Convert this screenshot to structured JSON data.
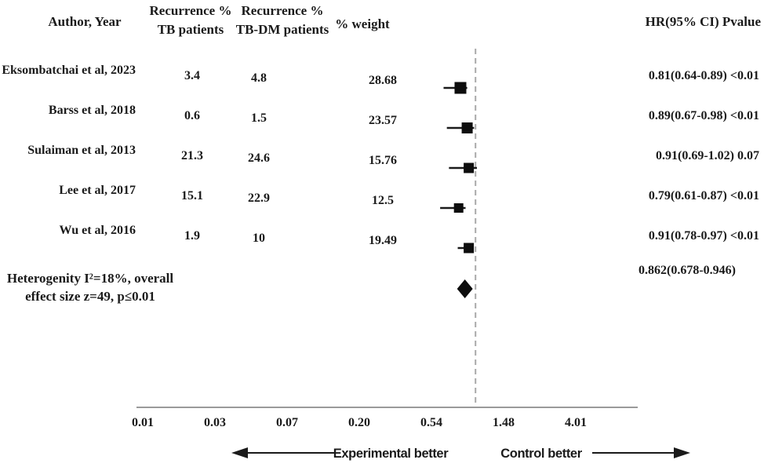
{
  "chart_data": {
    "type": "forest",
    "columns": {
      "author": "Author, Year",
      "tb_line1": "Recurrence %",
      "tb_line2": "TB patients",
      "tbdm_line1": "Recurrence %",
      "tbdm_line2": "TB-DM patients",
      "weight": "% weight",
      "hr": "HR(95% CI) Pvalue"
    },
    "studies": [
      {
        "author": "Eksombatchai et al, 2023",
        "recurrence_tb": "3.4",
        "recurrence_tbdm": "4.8",
        "weight": "28.68",
        "hr": 0.81,
        "ci_low": 0.64,
        "ci_high": 0.89,
        "hr_text": "0.81(0.64-0.89)",
        "pvalue": "<0.01"
      },
      {
        "author": "Barss et al, 2018",
        "recurrence_tb": "0.6",
        "recurrence_tbdm": "1.5",
        "weight": "23.57",
        "hr": 0.89,
        "ci_low": 0.67,
        "ci_high": 0.98,
        "hr_text": "0.89(0.67-0.98)",
        "pvalue": "<0.01"
      },
      {
        "author": "Sulaiman et al, 2013",
        "recurrence_tb": "21.3",
        "recurrence_tbdm": "24.6",
        "weight": "15.76",
        "hr": 0.91,
        "ci_low": 0.69,
        "ci_high": 1.02,
        "hr_text": "0.91(0.69-1.02)",
        "pvalue": "0.07"
      },
      {
        "author": "Lee et al, 2017",
        "recurrence_tb": "15.1",
        "recurrence_tbdm": "22.9",
        "weight": "12.5",
        "hr": 0.79,
        "ci_low": 0.61,
        "ci_high": 0.87,
        "hr_text": "0.79(0.61-0.87)",
        "pvalue": "<0.01"
      },
      {
        "author": "Wu et al, 2016",
        "recurrence_tb": "1.9",
        "recurrence_tbdm": "10",
        "weight": "19.49",
        "hr": 0.91,
        "ci_low": 0.78,
        "ci_high": 0.97,
        "hr_text": "0.91(0.78-0.97)",
        "pvalue": "<0.01"
      }
    ],
    "summary": {
      "label_line1": "Heterogenity I²=18%, overall",
      "label_line2": "effect size z=49, p≤0.01",
      "hr": 0.862,
      "ci_low": 0.678,
      "ci_high": 0.946,
      "hr_text": "0.862(0.678-0.946)",
      "pvalue": ""
    },
    "x_axis": {
      "scale": "log",
      "tick_labels": [
        "0.01",
        "0.03",
        "0.07",
        "0.20",
        "0.54",
        "1.48",
        "4.01"
      ],
      "tick_values": [
        0.01,
        0.03,
        0.07,
        0.2,
        0.54,
        1.48,
        4.01
      ],
      "null_line": 1.0
    },
    "direction_labels": {
      "left": "Experimental better",
      "right": "Control better"
    },
    "colors": {
      "marker": "#0d0d0d",
      "whisker": "#1a1a1a",
      "null_line": "#a8a8a8",
      "axis": "#9a9a9a",
      "text": "#1a1a1a"
    }
  }
}
